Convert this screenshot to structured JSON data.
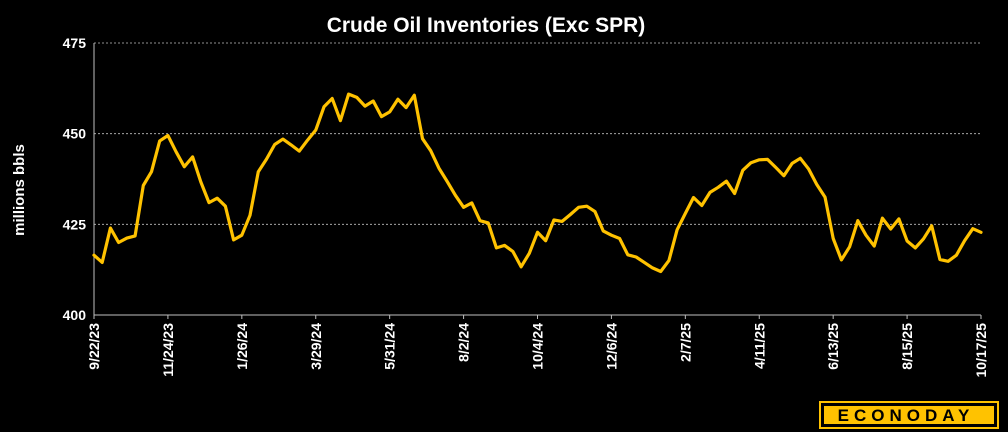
{
  "chart_data": {
    "type": "line",
    "title": "Crude Oil Inventories (Exc SPR)",
    "ylabel": "millions bbls",
    "xlabel": "",
    "ylim": [
      400,
      475
    ],
    "yticks": [
      400,
      425,
      450,
      475
    ],
    "grid": "horizontal-dashed",
    "legend": "none",
    "xticks": [
      "9/22/23",
      "11/24/23",
      "1/26/24",
      "3/29/24",
      "5/31/24",
      "8/2/24",
      "10/4/24",
      "12/6/24",
      "2/7/25",
      "4/11/25",
      "6/13/25",
      "8/15/25",
      "10/17/25"
    ],
    "series": [
      {
        "color": "#FFC200",
        "values": [
          416.5,
          414.5,
          424,
          420,
          421.2,
          421.8,
          435.7,
          439.5,
          448,
          449.5,
          445,
          440.9,
          443.6,
          436.7,
          431,
          432.2,
          430,
          420.7,
          422,
          427.5,
          439.5,
          443,
          447,
          448.5,
          446.9,
          445.2,
          448.2,
          451,
          457.4,
          459.7,
          453.6,
          460.9,
          460,
          457.6,
          459,
          454.7,
          456,
          459.5,
          457.2,
          460.6,
          448.6,
          445.3,
          440.5,
          436.8,
          433,
          429.7,
          430.9,
          426,
          425.4,
          418.5,
          419.2,
          417.5,
          413.3,
          417,
          422.8,
          420.5,
          426.2,
          425.8,
          427.7,
          429.7,
          430,
          428.5,
          423.2,
          422,
          421.1,
          416.6,
          416,
          414.5,
          413,
          412,
          415,
          423.5,
          428,
          432.4,
          430.2,
          433.8,
          435.2,
          436.9,
          433.5,
          439.9,
          442,
          442.8,
          442.9,
          440.7,
          438.4,
          441.8,
          443.2,
          440.3,
          436,
          432.5,
          421.1,
          415.2,
          418.8,
          426,
          422,
          419,
          426.7,
          423.7,
          426.5,
          420.4,
          418.5,
          421,
          424.6,
          415.3,
          414.8,
          416.5,
          420.5,
          423.8,
          422.8
        ]
      }
    ],
    "source_logo_text": "ECONODAY"
  }
}
